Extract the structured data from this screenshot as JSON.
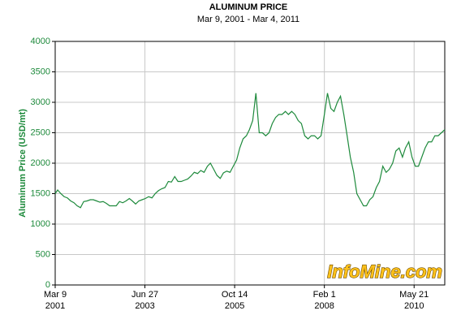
{
  "chart_data": {
    "type": "line",
    "title": "ALUMINUM PRICE",
    "subtitle": "Mar 9, 2001 - Mar 4, 2011",
    "y_label": "Aluminum Price (USD/mt)",
    "watermark": "InfoMine.com",
    "grid": true,
    "xlim": [
      "2001-03-09",
      "2011-03-04"
    ],
    "xticks": [
      {
        "value": "2001-03-09",
        "label": [
          "Mar 9",
          "2001"
        ]
      },
      {
        "value": "2003-06-27",
        "label": [
          "Jun 27",
          "2003"
        ]
      },
      {
        "value": "2005-10-14",
        "label": [
          "Oct 14",
          "2005"
        ]
      },
      {
        "value": "2008-02-01",
        "label": [
          "Feb 1",
          "2008"
        ]
      },
      {
        "value": "2010-05-21",
        "label": [
          "May 21",
          "2010"
        ]
      }
    ],
    "ylim": [
      0,
      4000
    ],
    "yticks": [
      0,
      500,
      1000,
      1500,
      2000,
      2500,
      3000,
      3500,
      4000
    ],
    "x": [
      "2001-03-09",
      "2001-04-01",
      "2001-05-01",
      "2001-06-01",
      "2001-07-01",
      "2001-08-01",
      "2001-09-01",
      "2001-10-01",
      "2001-11-01",
      "2001-12-01",
      "2002-01-01",
      "2002-02-01",
      "2002-03-01",
      "2002-04-01",
      "2002-05-01",
      "2002-06-01",
      "2002-07-01",
      "2002-08-01",
      "2002-09-01",
      "2002-10-01",
      "2002-11-01",
      "2002-12-01",
      "2003-01-01",
      "2003-02-01",
      "2003-03-01",
      "2003-04-01",
      "2003-05-01",
      "2003-06-01",
      "2003-07-01",
      "2003-08-01",
      "2003-09-01",
      "2003-10-01",
      "2003-11-01",
      "2003-12-01",
      "2004-01-01",
      "2004-02-01",
      "2004-03-01",
      "2004-04-01",
      "2004-05-01",
      "2004-06-01",
      "2004-07-01",
      "2004-08-01",
      "2004-09-01",
      "2004-10-01",
      "2004-11-01",
      "2004-12-01",
      "2005-01-01",
      "2005-02-01",
      "2005-03-01",
      "2005-04-01",
      "2005-05-01",
      "2005-06-01",
      "2005-07-01",
      "2005-08-01",
      "2005-09-01",
      "2005-10-01",
      "2005-11-01",
      "2005-12-01",
      "2006-01-01",
      "2006-02-01",
      "2006-03-01",
      "2006-04-01",
      "2006-05-01",
      "2006-06-01",
      "2006-07-01",
      "2006-08-01",
      "2006-09-01",
      "2006-10-01",
      "2006-11-01",
      "2006-12-01",
      "2007-01-01",
      "2007-02-01",
      "2007-03-01",
      "2007-04-01",
      "2007-05-01",
      "2007-06-01",
      "2007-07-01",
      "2007-08-01",
      "2007-09-01",
      "2007-10-01",
      "2007-11-01",
      "2007-12-01",
      "2008-01-01",
      "2008-02-01",
      "2008-03-01",
      "2008-04-01",
      "2008-05-01",
      "2008-06-01",
      "2008-07-01",
      "2008-08-01",
      "2008-09-01",
      "2008-10-01",
      "2008-11-01",
      "2008-12-01",
      "2009-01-01",
      "2009-02-01",
      "2009-03-01",
      "2009-04-01",
      "2009-05-01",
      "2009-06-01",
      "2009-07-01",
      "2009-08-01",
      "2009-09-01",
      "2009-10-01",
      "2009-11-01",
      "2009-12-01",
      "2010-01-01",
      "2010-02-01",
      "2010-03-01",
      "2010-04-01",
      "2010-05-01",
      "2010-06-01",
      "2010-07-01",
      "2010-08-01",
      "2010-09-01",
      "2010-10-01",
      "2010-11-01",
      "2010-12-01",
      "2011-01-01",
      "2011-02-01",
      "2011-03-04"
    ],
    "series": [
      {
        "name": "Aluminum Price",
        "color": "#1e8a3c",
        "values": [
          1500,
          1560,
          1500,
          1450,
          1430,
          1380,
          1350,
          1300,
          1270,
          1370,
          1380,
          1400,
          1400,
          1380,
          1360,
          1370,
          1340,
          1300,
          1300,
          1300,
          1370,
          1350,
          1380,
          1420,
          1380,
          1330,
          1380,
          1400,
          1420,
          1450,
          1430,
          1500,
          1550,
          1580,
          1600,
          1700,
          1690,
          1780,
          1700,
          1700,
          1720,
          1740,
          1790,
          1850,
          1830,
          1880,
          1850,
          1950,
          2000,
          1900,
          1800,
          1750,
          1840,
          1870,
          1850,
          1950,
          2050,
          2250,
          2400,
          2450,
          2550,
          2700,
          3150,
          2500,
          2500,
          2450,
          2500,
          2650,
          2750,
          2800,
          2800,
          2850,
          2800,
          2850,
          2800,
          2700,
          2650,
          2450,
          2400,
          2450,
          2450,
          2400,
          2450,
          2800,
          3150,
          2900,
          2850,
          3000,
          3100,
          2800,
          2450,
          2100,
          1850,
          1500,
          1400,
          1300,
          1300,
          1400,
          1450,
          1600,
          1700,
          1950,
          1850,
          1900,
          2000,
          2200,
          2250,
          2100,
          2250,
          2350,
          2100,
          1950,
          1950,
          2100,
          2250,
          2350,
          2350,
          2450,
          2450,
          2500,
          2550
        ]
      }
    ]
  }
}
